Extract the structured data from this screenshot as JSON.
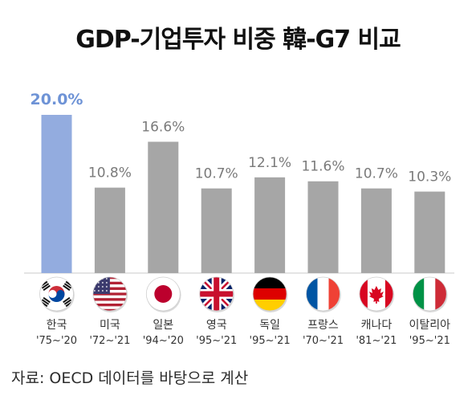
{
  "chart_data": {
    "type": "bar",
    "title": "GDP-기업투자 비중 韓-G7 비교",
    "categories": [
      "한국",
      "미국",
      "일본",
      "영국",
      "독일",
      "프랑스",
      "캐나다",
      "이탈리아"
    ],
    "periods": [
      "'75~'20",
      "'72~'21",
      "'94~'20",
      "'95~'21",
      "'95~'21",
      "'70~'21",
      "'81~'21",
      "'95~'21"
    ],
    "flag_icons": [
      "korea-flag-icon",
      "usa-flag-icon",
      "japan-flag-icon",
      "uk-flag-icon",
      "germany-flag-icon",
      "france-flag-icon",
      "canada-flag-icon",
      "italy-flag-icon"
    ],
    "values": [
      20.0,
      10.8,
      16.6,
      10.7,
      12.1,
      11.6,
      10.7,
      10.3
    ],
    "value_labels": [
      "20.0%",
      "10.8%",
      "16.6%",
      "10.7%",
      "12.1%",
      "11.6%",
      "10.7%",
      "10.3%"
    ],
    "ylim": [
      0,
      22
    ],
    "highlight_index": 0,
    "colors": {
      "highlight_bar": "#93acdf",
      "highlight_label": "#6e93d6",
      "bar": "#a6a6a6",
      "label": "#7a7a7a"
    },
    "grid": false,
    "xlabel": "",
    "ylabel": ""
  },
  "source": "자료: OECD 데이터를 바탕으로 계산"
}
